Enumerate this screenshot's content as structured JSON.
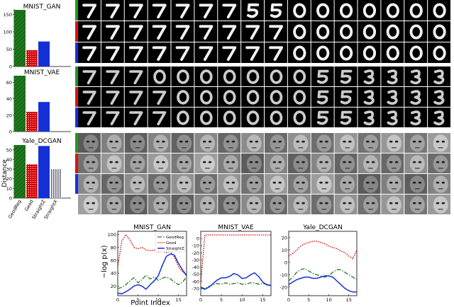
{
  "colors": {
    "geodreg": "#1f7a1f",
    "geod": "#d40000",
    "straightz": "#1430d6",
    "straightx": "#808080"
  },
  "bar_panels": [
    {
      "title": "MNIST_GAN"
    },
    {
      "title": "MNIST_VAE"
    },
    {
      "title": "Yale_DCGAN"
    }
  ],
  "bar_ylabel": "Distance",
  "bar_categories": [
    "GeodReg",
    "Geod",
    "StraightZ",
    "StraightX"
  ],
  "line_ylabel": "−log p(x)",
  "line_xlabel": "Point Index",
  "line_panels": [
    {
      "title": "MNIST_GAN"
    },
    {
      "title": "MNIST_VAE"
    },
    {
      "title": "Yale_DCGAN"
    }
  ],
  "legend": [
    "GeodReg",
    "Geod",
    "StraightZ"
  ],
  "image_grids": [
    {
      "name": "MNIST_GAN",
      "rows": 3,
      "cols": 16,
      "row_markers": [
        "green",
        "red",
        "blue"
      ],
      "digits": [
        [
          "7",
          "7",
          "7",
          "7",
          "7",
          "7",
          "7",
          "5",
          "5",
          "0",
          "0",
          "0",
          "0",
          "0",
          "0",
          "0"
        ],
        [
          "7",
          "7",
          "7",
          "7",
          "7",
          "7",
          "7",
          "7",
          "7",
          "0",
          "0",
          "0",
          "0",
          "0",
          "0",
          "0"
        ],
        [
          "7",
          "7",
          "7",
          "7",
          "7",
          "7",
          "7",
          "7",
          "7",
          "0",
          "0",
          "0",
          "0",
          "0",
          "0",
          "0"
        ]
      ]
    },
    {
      "name": "MNIST_VAE",
      "rows": 3,
      "cols": 16,
      "row_markers": [
        "green",
        "red",
        "blue"
      ],
      "digits": [
        [
          "7",
          "7",
          "7",
          "0",
          "0",
          "0",
          "0",
          "0",
          "0",
          "0",
          "5",
          "5",
          "3",
          "3",
          "3",
          "3"
        ],
        [
          "7",
          "7",
          "7",
          "7",
          "0",
          "0",
          "0",
          "0",
          "0",
          "0",
          "5",
          "5",
          "3",
          "3",
          "3",
          "3"
        ],
        [
          "7",
          "7",
          "7",
          "7",
          "0",
          "0",
          "0",
          "0",
          "0",
          "0",
          "5",
          "5",
          "3",
          "3",
          "3",
          "3"
        ]
      ]
    },
    {
      "name": "Yale_DCGAN",
      "rows": 4,
      "cols": 16,
      "row_markers": [
        "green",
        "red",
        "blue",
        "none"
      ]
    }
  ],
  "chart_data": [
    {
      "type": "bar",
      "title": "MNIST_GAN",
      "categories": [
        "GeodReg",
        "Geod",
        "StraightZ"
      ],
      "values": [
        163,
        47,
        72
      ],
      "ylim": [
        0,
        165
      ],
      "yticks": [
        0,
        50,
        100,
        150
      ],
      "ylabel": ""
    },
    {
      "type": "bar",
      "title": "MNIST_VAE",
      "categories": [
        "GeodReg",
        "Geod",
        "StraightZ"
      ],
      "values": [
        68,
        24,
        36
      ],
      "ylim": [
        0,
        68
      ],
      "yticks": [
        0,
        20,
        40,
        60
      ],
      "ylabel": ""
    },
    {
      "type": "bar",
      "title": "Yale_DCGAN",
      "categories": [
        "GeodReg",
        "Geod",
        "StraightZ",
        "StraightX"
      ],
      "values": [
        55,
        35,
        54,
        30
      ],
      "ylim": [
        0,
        55
      ],
      "yticks": [
        0,
        10,
        20,
        30,
        40,
        50
      ],
      "ylabel": "Distance"
    },
    {
      "type": "line",
      "title": "MNIST_GAN",
      "xlabel": "Point Index",
      "ylabel": "−log p(x)",
      "x": [
        0,
        1,
        2,
        3,
        4,
        5,
        6,
        7,
        8,
        9,
        10,
        11,
        12,
        13,
        14,
        15,
        16,
        17
      ],
      "xlim": [
        0,
        17
      ],
      "xticks": [
        0,
        5,
        10,
        15
      ],
      "ylim": [
        5,
        105
      ],
      "yticks": [
        20,
        40,
        60,
        80,
        100
      ],
      "legend": "top-right",
      "series": [
        {
          "name": "GeodReg",
          "values": [
            16,
            18,
            22,
            28,
            33,
            25,
            30,
            37,
            31,
            34,
            29,
            32,
            34,
            31,
            26,
            22,
            26,
            34
          ]
        },
        {
          "name": "Geod",
          "values": [
            50,
            90,
            100,
            92,
            80,
            78,
            80,
            76,
            75,
            76,
            73,
            74,
            72,
            74,
            65,
            50,
            42,
            38
          ]
        },
        {
          "name": "StraightZ",
          "values": [
            9,
            8,
            11,
            15,
            20,
            22,
            20,
            15,
            22,
            28,
            36,
            52,
            66,
            70,
            68,
            55,
            45,
            36
          ]
        }
      ]
    },
    {
      "type": "line",
      "title": "MNIST_VAE",
      "xlabel": "",
      "ylabel": "",
      "x": [
        0,
        1,
        2,
        3,
        4,
        5,
        6,
        7,
        8,
        9,
        10,
        11,
        12,
        13,
        14,
        15,
        16,
        17
      ],
      "xlim": [
        0,
        17
      ],
      "xticks": [
        0,
        5,
        10,
        15
      ],
      "ylim": [
        -80,
        10
      ],
      "yticks": [
        -70,
        -60,
        -50,
        -40,
        -30,
        -20,
        -10,
        0
      ],
      "series": [
        {
          "name": "GeodReg",
          "values": [
            -68,
            -70,
            -67,
            -65,
            -63,
            -64,
            -62,
            -64,
            -63,
            -62,
            -64,
            -64,
            -62,
            -62,
            -64,
            -63,
            -64,
            -65
          ]
        },
        {
          "name": "Geod",
          "values": [
            -62,
            5,
            5,
            5,
            5,
            5,
            5,
            5,
            5,
            5,
            5,
            5,
            5,
            5,
            5,
            5,
            5,
            5
          ]
        },
        {
          "name": "StraightZ",
          "values": [
            -69,
            -71,
            -68,
            -63,
            -58,
            -55,
            -55,
            -53,
            -49,
            -51,
            -56,
            -55,
            -51,
            -48,
            -53,
            -61,
            -65,
            -66
          ]
        }
      ]
    },
    {
      "type": "line",
      "title": "Yale_DCGAN",
      "xlabel": "",
      "ylabel": "",
      "x": [
        0,
        1,
        2,
        3,
        4,
        5,
        6,
        7,
        8,
        9,
        10,
        11,
        12,
        13,
        14,
        15,
        16,
        17
      ],
      "xlim": [
        0,
        17
      ],
      "xticks": [
        0,
        5,
        10,
        15
      ],
      "ylim": [
        -27,
        25
      ],
      "yticks": [
        -20,
        -10,
        0,
        10,
        20
      ],
      "series": [
        {
          "name": "GeodReg",
          "values": [
            -15,
            -12,
            -8,
            -6,
            -5,
            -7,
            -9,
            -10,
            -11,
            -12,
            -11,
            -8,
            -6,
            -6,
            -8,
            -10,
            -12,
            -14
          ]
        },
        {
          "name": "Geod",
          "values": [
            5,
            7,
            10,
            13,
            15,
            16,
            17,
            17,
            16,
            15,
            13,
            12,
            11,
            9,
            8,
            5,
            3,
            10
          ]
        },
        {
          "name": "StraightZ",
          "values": [
            -18,
            -16,
            -14,
            -13,
            -12,
            -12,
            -13,
            -13,
            -12,
            -11,
            -11,
            -12,
            -15,
            -18,
            -21,
            -23,
            -24,
            -24
          ]
        }
      ]
    }
  ]
}
